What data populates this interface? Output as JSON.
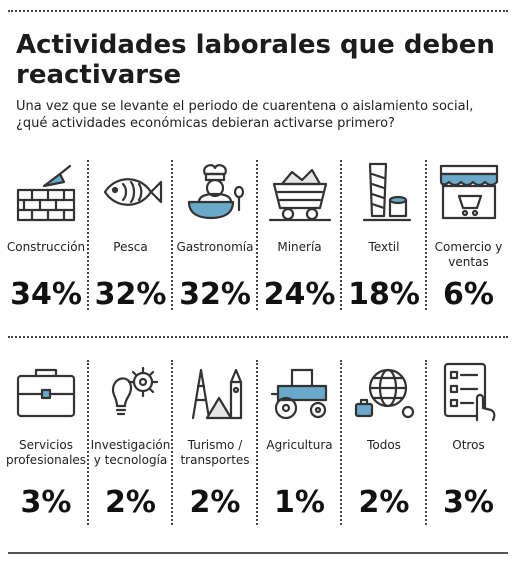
{
  "title": "Actividades laborales que deben reactivarse",
  "subtitle": "Una vez que se levante el periodo de cuarentena o aislamiento social, ¿qué actividades económicas debieran activarse primero?",
  "chart_data": {
    "type": "table",
    "unit": "%",
    "rows": [
      [
        {
          "category": "Construcción",
          "value": 34,
          "display": "34%",
          "icon": "brick-wall-trowel-icon"
        },
        {
          "category": "Pesca",
          "value": 32,
          "display": "32%",
          "icon": "fish-icon"
        },
        {
          "category": "Gastronomía",
          "value": 32,
          "display": "32%",
          "icon": "chef-icon"
        },
        {
          "category": "Minería",
          "value": 24,
          "display": "24%",
          "icon": "mine-cart-icon"
        },
        {
          "category": "Textil",
          "value": 18,
          "display": "18%",
          "icon": "thread-spool-icon"
        },
        {
          "category": "Comercio y ventas",
          "value": 6,
          "display": "6%",
          "icon": "storefront-icon"
        }
      ],
      [
        {
          "category": "Servicios profesionales",
          "value": 3,
          "display": "3%",
          "icon": "briefcase-icon"
        },
        {
          "category": "Investigación y tecnología",
          "value": 2,
          "display": "2%",
          "icon": "lightbulb-gear-icon"
        },
        {
          "category": "Turismo / transportes",
          "value": 2,
          "display": "2%",
          "icon": "landmarks-icon"
        },
        {
          "category": "Agricultura",
          "value": 1,
          "display": "1%",
          "icon": "tractor-icon"
        },
        {
          "category": "Todos",
          "value": 2,
          "display": "2%",
          "icon": "globe-icon"
        },
        {
          "category": "Otros",
          "value": 3,
          "display": "3%",
          "icon": "checklist-icon"
        }
      ]
    ]
  }
}
